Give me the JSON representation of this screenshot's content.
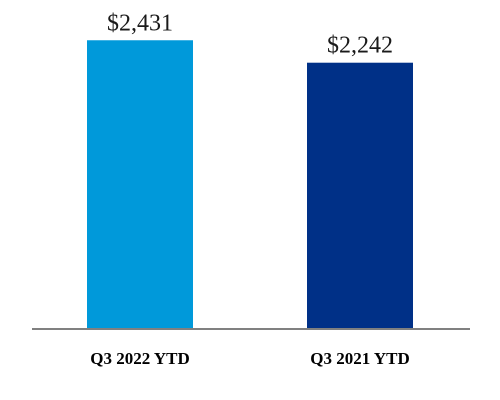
{
  "chart_data": {
    "type": "bar",
    "categories": [
      "Q3 2022 YTD",
      "Q3 2021 YTD"
    ],
    "values": [
      2431,
      2242
    ],
    "data_labels": [
      "$2,431",
      "$2,242"
    ],
    "colors": [
      "#0099DA",
      "#003087"
    ],
    "axis_color": "#808080",
    "ylim": [
      0,
      2450
    ],
    "grid": false,
    "legend": "none"
  }
}
